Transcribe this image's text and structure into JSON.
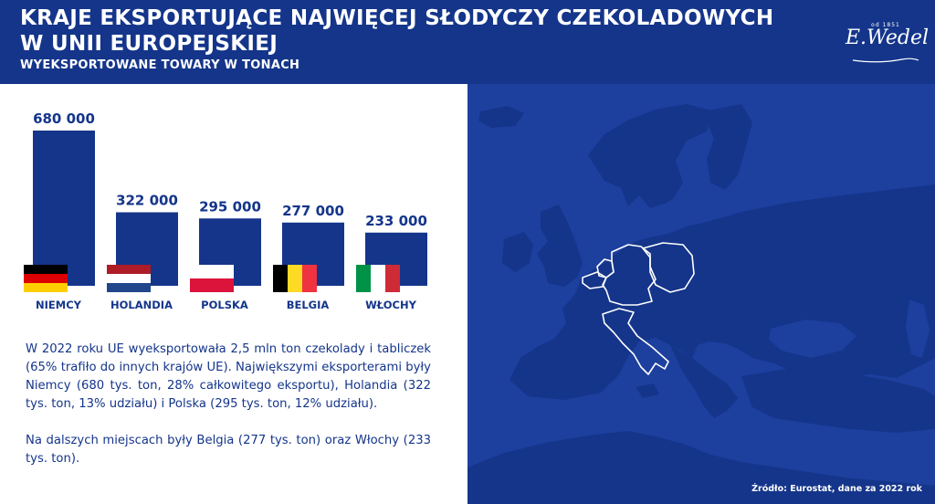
{
  "header": {
    "title_line1": "KRAJE EKSPORTUJĄCE NAJWIĘCEJ SŁODYCZY CZEKOLADOWYCH",
    "title_line2": "W UNII EUROPEJSKIEJ",
    "subtitle": "WYEKSPORTOWANE TOWARY W TONACH"
  },
  "logo": {
    "year": "od 1851",
    "name": "E.Wedel"
  },
  "chart_data": {
    "type": "bar",
    "categories": [
      "NIEMCY",
      "HOLANDIA",
      "POLSKA",
      "BELGIA",
      "WŁOCHY"
    ],
    "values": [
      680000,
      322000,
      295000,
      277000,
      233000
    ],
    "value_labels": [
      "680 000",
      "322 000",
      "295 000",
      "277 000",
      "233 000"
    ],
    "ylim": [
      0,
      680000
    ],
    "grid": false,
    "bar_color": "#14358a",
    "flags": [
      {
        "country": "germany",
        "stripes": "horizontal",
        "colors": [
          "#000000",
          "#dd0000",
          "#ffce00"
        ]
      },
      {
        "country": "netherlands",
        "stripes": "horizontal",
        "colors": [
          "#ae1c28",
          "#ffffff",
          "#21468b"
        ]
      },
      {
        "country": "poland",
        "stripes": "horizontal",
        "colors": [
          "#ffffff",
          "#dc143c"
        ]
      },
      {
        "country": "belgium",
        "stripes": "vertical",
        "colors": [
          "#000000",
          "#fdda24",
          "#ef3340"
        ]
      },
      {
        "country": "italy",
        "stripes": "vertical",
        "colors": [
          "#009246",
          "#ffffff",
          "#ce2b37"
        ]
      }
    ]
  },
  "description": {
    "paragraph1": "W 2022 roku UE wyeksportowała 2,5 mln ton czekolady i tabliczek (65% trafiło do innych krajów UE). Największymi eksporterami były Niemcy (680 tys. ton, 28% całkowitego eksportu), Holandia (322 tys. ton, 13% udziału) i Polska (295 tys. ton, 12% udziału).",
    "paragraph2": "Na dalszych miejscach były Belgia (277 tys. ton) oraz Włochy (233 tys. ton)."
  },
  "map": {
    "highlighted_countries": [
      "germany",
      "poland",
      "netherlands",
      "belgium",
      "italy"
    ],
    "sea_color": "#1d3f9e",
    "land_color": "#14358a",
    "highlight_color": "#ffffff"
  },
  "source": "Źródło: Eurostat, dane za 2022 rok",
  "colors": {
    "navy": "#14358a",
    "white": "#ffffff"
  }
}
